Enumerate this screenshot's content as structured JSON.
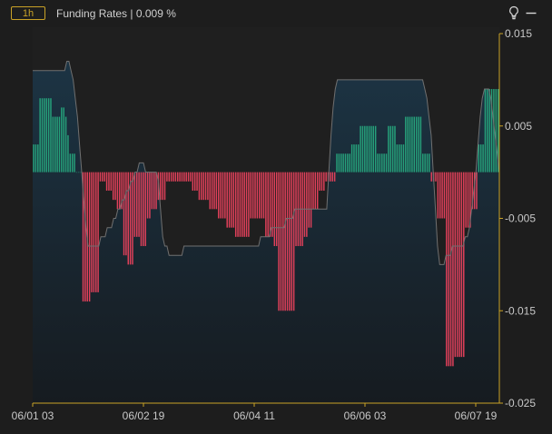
{
  "header": {
    "interval": "1h",
    "title": "Funding Rates | 0.009 %"
  },
  "icons": {
    "bulb": "lightbulb-icon",
    "minimize": "minimize-icon"
  },
  "colors": {
    "positive": "#26a17b",
    "negative": "#e0405a",
    "axis": "#c9a227",
    "line": "#707070"
  },
  "chart_data": {
    "type": "bar",
    "title": "",
    "ylim": [
      -0.025,
      0.015
    ],
    "yticks": [
      {
        "value": 0.015,
        "label": "0.015"
      },
      {
        "value": 0.005,
        "label": "0.005"
      },
      {
        "value": -0.005,
        "label": "-0.005"
      },
      {
        "value": -0.015,
        "label": "-0.015"
      },
      {
        "value": -0.025,
        "label": "-0.025"
      }
    ],
    "xticks": [
      "06/01 03",
      "06/02 19",
      "06/04 11",
      "06/06 03",
      "06/07 19"
    ],
    "series": [
      {
        "kind": "bar",
        "values": [
          0.003,
          0.003,
          0.003,
          0.008,
          0.008,
          0.008,
          0.008,
          0.008,
          0.008,
          0.006,
          0.006,
          0.006,
          0.006,
          0.007,
          0.007,
          0.006,
          0.004,
          0.002,
          0.002,
          0.002,
          -0.0,
          -0.0,
          -0.0,
          -0.014,
          -0.014,
          -0.014,
          -0.014,
          -0.013,
          -0.013,
          -0.013,
          -0.013,
          -0.001,
          -0.001,
          -0.001,
          -0.002,
          -0.002,
          -0.002,
          -0.003,
          -0.003,
          -0.004,
          -0.004,
          -0.004,
          -0.009,
          -0.009,
          -0.01,
          -0.01,
          -0.01,
          -0.007,
          -0.007,
          -0.007,
          -0.008,
          -0.008,
          -0.008,
          -0.005,
          -0.005,
          -0.004,
          -0.004,
          -0.004,
          -0.003,
          -0.003,
          -0.003,
          -0.003,
          -0.001,
          -0.001,
          -0.001,
          -0.001,
          -0.001,
          -0.001,
          -0.001,
          -0.001,
          -0.001,
          -0.001,
          -0.001,
          -0.001,
          -0.002,
          -0.002,
          -0.002,
          -0.003,
          -0.003,
          -0.003,
          -0.003,
          -0.003,
          -0.004,
          -0.004,
          -0.004,
          -0.004,
          -0.005,
          -0.005,
          -0.005,
          -0.005,
          -0.006,
          -0.006,
          -0.006,
          -0.006,
          -0.007,
          -0.007,
          -0.007,
          -0.007,
          -0.007,
          -0.007,
          -0.007,
          -0.005,
          -0.005,
          -0.005,
          -0.005,
          -0.005,
          -0.005,
          -0.005,
          -0.007,
          -0.007,
          -0.007,
          -0.007,
          -0.008,
          -0.008,
          -0.015,
          -0.015,
          -0.015,
          -0.015,
          -0.015,
          -0.015,
          -0.015,
          -0.015,
          -0.008,
          -0.008,
          -0.008,
          -0.008,
          -0.007,
          -0.007,
          -0.006,
          -0.006,
          -0.004,
          -0.004,
          -0.004,
          -0.002,
          -0.002,
          -0.002,
          -0.001,
          -0.001,
          -0.001,
          -0.001,
          -0.001,
          0.002,
          0.002,
          0.002,
          0.002,
          0.002,
          0.002,
          0.002,
          0.003,
          0.003,
          0.003,
          0.003,
          0.005,
          0.005,
          0.005,
          0.005,
          0.005,
          0.005,
          0.005,
          0.005,
          0.002,
          0.002,
          0.002,
          0.002,
          0.002,
          0.005,
          0.005,
          0.005,
          0.005,
          0.003,
          0.003,
          0.003,
          0.003,
          0.006,
          0.006,
          0.006,
          0.006,
          0.006,
          0.006,
          0.006,
          0.006,
          0.002,
          0.002,
          0.002,
          0.002,
          -0.001,
          -0.001,
          -0.001,
          -0.005,
          -0.005,
          -0.005,
          -0.005,
          -0.021,
          -0.021,
          -0.021,
          -0.021,
          -0.02,
          -0.02,
          -0.02,
          -0.02,
          -0.02,
          -0.006,
          -0.006,
          -0.006,
          -0.004,
          -0.004,
          -0.004,
          0.003,
          0.003,
          0.003,
          0.009,
          0.009,
          0.009,
          0.009,
          0.009,
          0.009,
          0.009
        ]
      },
      {
        "kind": "line",
        "values": [
          0.011,
          0.011,
          0.011,
          0.011,
          0.011,
          0.011,
          0.011,
          0.011,
          0.011,
          0.011,
          0.011,
          0.011,
          0.011,
          0.011,
          0.011,
          0.011,
          0.012,
          0.012,
          0.011,
          0.01,
          0.008,
          0.006,
          0.003,
          0.0,
          -0.003,
          -0.006,
          -0.008,
          -0.008,
          -0.008,
          -0.008,
          -0.008,
          -0.008,
          -0.007,
          -0.007,
          -0.007,
          -0.006,
          -0.006,
          -0.006,
          -0.005,
          -0.005,
          -0.004,
          -0.004,
          -0.003,
          -0.003,
          -0.002,
          -0.002,
          -0.001,
          -0.001,
          -0.0,
          0.0,
          0.001,
          0.001,
          0.001,
          0.0,
          -0.0,
          -0.0,
          -0.0,
          -0.0,
          -0.0,
          -0.001,
          -0.004,
          -0.007,
          -0.008,
          -0.008,
          -0.009,
          -0.009,
          -0.009,
          -0.009,
          -0.009,
          -0.009,
          -0.009,
          -0.008,
          -0.008,
          -0.008,
          -0.008,
          -0.008,
          -0.008,
          -0.008,
          -0.008,
          -0.008,
          -0.008,
          -0.008,
          -0.008,
          -0.008,
          -0.008,
          -0.008,
          -0.008,
          -0.008,
          -0.008,
          -0.008,
          -0.008,
          -0.008,
          -0.008,
          -0.008,
          -0.008,
          -0.008,
          -0.008,
          -0.008,
          -0.008,
          -0.008,
          -0.008,
          -0.008,
          -0.008,
          -0.008,
          -0.008,
          -0.008,
          -0.008,
          -0.007,
          -0.007,
          -0.007,
          -0.007,
          -0.007,
          -0.006,
          -0.006,
          -0.006,
          -0.006,
          -0.006,
          -0.006,
          -0.006,
          -0.005,
          -0.005,
          -0.005,
          -0.005,
          -0.004,
          -0.004,
          -0.004,
          -0.004,
          -0.004,
          -0.004,
          -0.004,
          -0.004,
          -0.004,
          -0.004,
          -0.004,
          -0.004,
          -0.004,
          -0.004,
          -0.004,
          -0.004,
          0.0,
          0.004,
          0.007,
          0.009,
          0.01,
          0.01,
          0.01,
          0.01,
          0.01,
          0.01,
          0.01,
          0.01,
          0.01,
          0.01,
          0.01,
          0.01,
          0.01,
          0.01,
          0.01,
          0.01,
          0.01,
          0.01,
          0.01,
          0.01,
          0.01,
          0.01,
          0.01,
          0.01,
          0.01,
          0.01,
          0.01,
          0.01,
          0.01,
          0.01,
          0.01,
          0.01,
          0.01,
          0.01,
          0.01,
          0.01,
          0.01,
          0.01,
          0.01,
          0.01,
          0.01,
          0.009,
          0.008,
          0.006,
          0.004,
          0.0,
          -0.004,
          -0.008,
          -0.01,
          -0.01,
          -0.01,
          -0.009,
          -0.009,
          -0.009,
          -0.008,
          -0.008,
          -0.008,
          -0.008,
          -0.008,
          -0.008,
          -0.007,
          -0.007,
          -0.006,
          -0.004,
          -0.002,
          0.0,
          0.003,
          0.006,
          0.008,
          0.009,
          0.009,
          0.009,
          0.008,
          0.006,
          0.004,
          0.002,
          0.0
        ]
      }
    ]
  }
}
